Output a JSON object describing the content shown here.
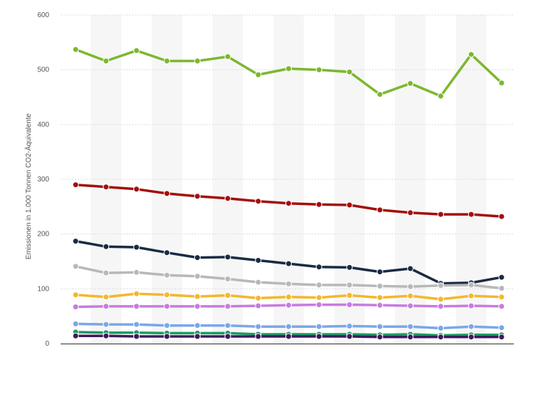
{
  "chart_data": {
    "type": "line",
    "ylabel": "Emissionen in 1.000 Tonnen CO2-Äquivalente",
    "ylim": [
      0,
      600
    ],
    "yticks": [
      0,
      100,
      200,
      300,
      400,
      500,
      600
    ],
    "x_count": 15,
    "grid": true,
    "legend": "none",
    "series": [
      {
        "color": "#7cb82f",
        "values": [
          537,
          516,
          535,
          516,
          516,
          524,
          491,
          502,
          500,
          496,
          455,
          475,
          452,
          528,
          476
        ]
      },
      {
        "color": "#a30e0e",
        "values": [
          290,
          286,
          282,
          274,
          269,
          265,
          260,
          256,
          254,
          253,
          244,
          239,
          236,
          236,
          232
        ]
      },
      {
        "color": "#1a2b44",
        "values": [
          187,
          177,
          176,
          166,
          157,
          158,
          152,
          146,
          140,
          139,
          131,
          137,
          110,
          111,
          121
        ]
      },
      {
        "color": "#b8b8b8",
        "values": [
          141,
          129,
          130,
          125,
          123,
          118,
          112,
          109,
          107,
          107,
          105,
          104,
          106,
          107,
          101
        ]
      },
      {
        "color": "#f2b82e",
        "values": [
          89,
          85,
          91,
          89,
          86,
          88,
          83,
          85,
          84,
          88,
          84,
          87,
          81,
          87,
          85
        ]
      },
      {
        "color": "#c87be0",
        "values": [
          67,
          68,
          68,
          68,
          68,
          68,
          69,
          70,
          71,
          71,
          70,
          69,
          68,
          69,
          68
        ]
      },
      {
        "color": "#7aa7e8",
        "values": [
          36,
          35,
          35,
          33,
          33,
          33,
          31,
          31,
          31,
          32,
          31,
          31,
          28,
          31,
          29
        ]
      },
      {
        "color": "#1e9a63",
        "values": [
          21,
          20,
          20,
          19,
          19,
          19,
          17,
          17,
          17,
          17,
          16,
          17,
          15,
          16,
          16
        ]
      },
      {
        "color": "#3d1a5e",
        "values": [
          14,
          14,
          13,
          13,
          13,
          13,
          13,
          13,
          13,
          13,
          12,
          12,
          12,
          12,
          12
        ]
      }
    ]
  }
}
